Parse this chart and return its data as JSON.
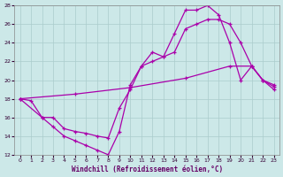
{
  "xlabel": "Windchill (Refroidissement éolien,°C)",
  "bg_color": "#cce8e8",
  "grid_color": "#aacccc",
  "line_color": "#aa00aa",
  "xlim": [
    -0.5,
    23.5
  ],
  "ylim": [
    12,
    28
  ],
  "xticks": [
    0,
    1,
    2,
    3,
    4,
    5,
    6,
    7,
    8,
    9,
    10,
    11,
    12,
    13,
    14,
    15,
    16,
    17,
    18,
    19,
    20,
    21,
    22,
    23
  ],
  "yticks": [
    12,
    14,
    16,
    18,
    20,
    22,
    24,
    26,
    28
  ],
  "line1_x": [
    0,
    1,
    2,
    3,
    4,
    5,
    6,
    7,
    8,
    9,
    10,
    11,
    12,
    13,
    14,
    15,
    16,
    17,
    18,
    19,
    20,
    21,
    22,
    23
  ],
  "line1_y": [
    18,
    17.8,
    16,
    15,
    14,
    13.5,
    13,
    12.5,
    12,
    14.5,
    19.5,
    21.5,
    23,
    22.5,
    25,
    27.5,
    27.5,
    28,
    27,
    24,
    20,
    21.5,
    20,
    19.5
  ],
  "line2_x": [
    0,
    2,
    3,
    4,
    5,
    6,
    7,
    8,
    9,
    10,
    11,
    12,
    13,
    14,
    15,
    16,
    17,
    18,
    19,
    20,
    21,
    22,
    23
  ],
  "line2_y": [
    18,
    16,
    16,
    14.8,
    14.5,
    14.3,
    14,
    13.8,
    17,
    19,
    21.5,
    22,
    22.5,
    23,
    25.5,
    26,
    26.5,
    26.5,
    26,
    24,
    21.5,
    20,
    19
  ],
  "line3_x": [
    0,
    5,
    10,
    15,
    19,
    21,
    22,
    23
  ],
  "line3_y": [
    18,
    18.5,
    19.2,
    20.2,
    21.5,
    21.5,
    20.0,
    19.3
  ]
}
